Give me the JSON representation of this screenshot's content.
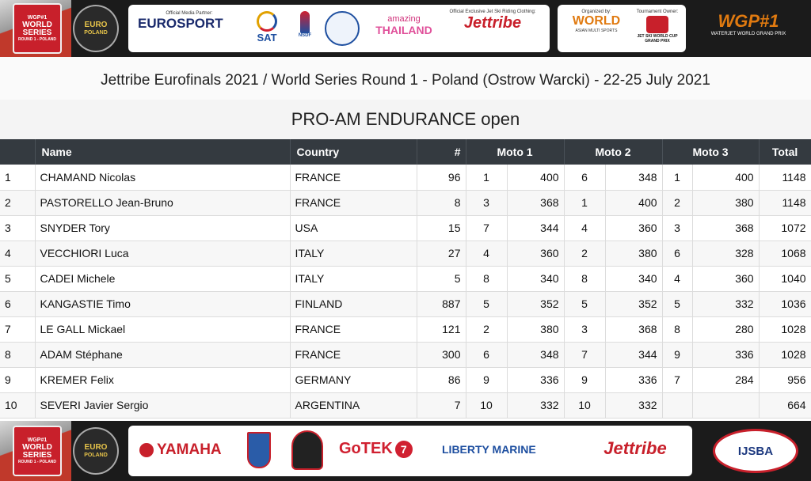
{
  "top_banner": {
    "left_badge_top": "WGP#1",
    "left_badge_main": "WORLD SERIES",
    "left_badge_sub": "ROUND 1 - POLAND",
    "euro_badge_main": "EURO",
    "euro_badge_sub": "POLAND",
    "media_partner_caption": "Official Media Partner:",
    "eurosport": "EUROSPORT",
    "sat": "SAT",
    "nsdf": "NSDF",
    "amazing": "amazing",
    "thailand": "THAILAND",
    "clothing_caption": "Official Exclusive Jet Ski Riding Clothing:",
    "jettribe": "Jettribe",
    "organized_caption": "Organized by:",
    "world": "WORLD",
    "world_sub": "ASIAN MULTI SPORTS",
    "owner_caption": "Tournament Owner:",
    "cup": "JET SKI WORLD CUP GRAND PRIX",
    "wgp": "WGP#1",
    "wgp_sub": "WATERJET WORLD GRAND PRIX"
  },
  "header": {
    "title": "Jettribe Eurofinals 2021 / World Series Round 1 - Poland (Ostrow Warcki) - 22-25 July 2021",
    "class_title": "PRO-AM ENDURANCE open"
  },
  "table": {
    "columns": {
      "pos": "",
      "name": "Name",
      "country": "Country",
      "number": "#",
      "moto1": "Moto 1",
      "moto2": "Moto 2",
      "moto3": "Moto 3",
      "total": "Total"
    },
    "rows": [
      {
        "pos": "1",
        "name": "CHAMAND Nicolas",
        "country": "FRANCE",
        "num": "96",
        "m1p": "1",
        "m1s": "400",
        "m2p": "6",
        "m2s": "348",
        "m3p": "1",
        "m3s": "400",
        "total": "1148"
      },
      {
        "pos": "2",
        "name": "PASTORELLO Jean-Bruno",
        "country": "FRANCE",
        "num": "8",
        "m1p": "3",
        "m1s": "368",
        "m2p": "1",
        "m2s": "400",
        "m3p": "2",
        "m3s": "380",
        "total": "1148"
      },
      {
        "pos": "3",
        "name": "SNYDER Tory",
        "country": "USA",
        "num": "15",
        "m1p": "7",
        "m1s": "344",
        "m2p": "4",
        "m2s": "360",
        "m3p": "3",
        "m3s": "368",
        "total": "1072"
      },
      {
        "pos": "4",
        "name": "VECCHIORI Luca",
        "country": "ITALY",
        "num": "27",
        "m1p": "4",
        "m1s": "360",
        "m2p": "2",
        "m2s": "380",
        "m3p": "6",
        "m3s": "328",
        "total": "1068"
      },
      {
        "pos": "5",
        "name": "CADEI Michele",
        "country": "ITALY",
        "num": "5",
        "m1p": "8",
        "m1s": "340",
        "m2p": "8",
        "m2s": "340",
        "m3p": "4",
        "m3s": "360",
        "total": "1040"
      },
      {
        "pos": "6",
        "name": "KANGASTIE Timo",
        "country": "FINLAND",
        "num": "887",
        "m1p": "5",
        "m1s": "352",
        "m2p": "5",
        "m2s": "352",
        "m3p": "5",
        "m3s": "332",
        "total": "1036"
      },
      {
        "pos": "7",
        "name": "LE GALL Mickael",
        "country": "FRANCE",
        "num": "121",
        "m1p": "2",
        "m1s": "380",
        "m2p": "3",
        "m2s": "368",
        "m3p": "8",
        "m3s": "280",
        "total": "1028"
      },
      {
        "pos": "8",
        "name": "ADAM Stéphane",
        "country": "FRANCE",
        "num": "300",
        "m1p": "6",
        "m1s": "348",
        "m2p": "7",
        "m2s": "344",
        "m3p": "9",
        "m3s": "336",
        "total": "1028"
      },
      {
        "pos": "9",
        "name": "KREMER Felix",
        "country": "GERMANY",
        "num": "86",
        "m1p": "9",
        "m1s": "336",
        "m2p": "9",
        "m2s": "336",
        "m3p": "7",
        "m3s": "284",
        "total": "956"
      },
      {
        "pos": "10",
        "name": "SEVERI Javier Sergio",
        "country": "ARGENTINA",
        "num": "7",
        "m1p": "10",
        "m1s": "332",
        "m2p": "10",
        "m2s": "332",
        "m3p": "",
        "m3s": "",
        "total": "664"
      }
    ]
  },
  "bottom_banner": {
    "yamaha": "YAMAHA",
    "gotek": "GoTEK",
    "gotek_num": "7",
    "liberty": "LIBERTY MARINE",
    "jettribe": "Jettribe",
    "ijsba": "IJSBA"
  },
  "colors": {
    "banner_bg": "#1b1b1b",
    "table_header_bg": "#343a40",
    "accent_red": "#c8202b"
  }
}
